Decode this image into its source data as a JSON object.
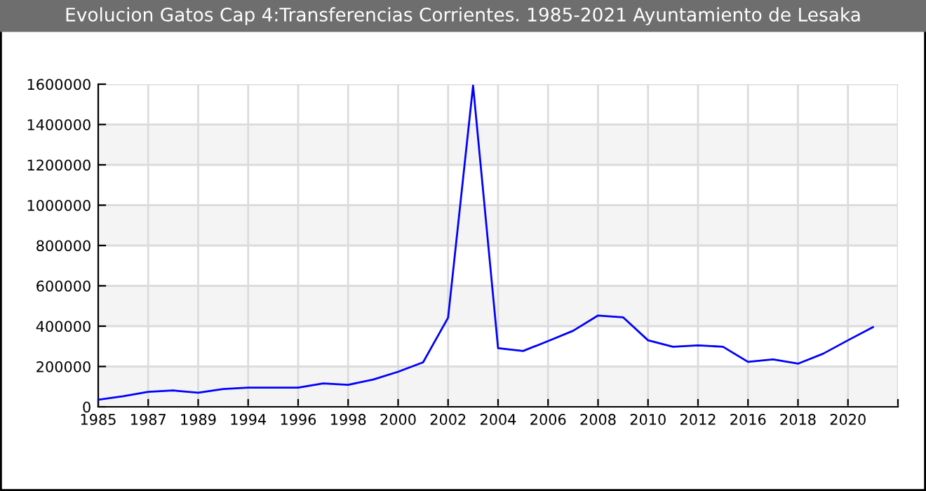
{
  "chart_data": {
    "type": "line",
    "title": "Evolucion Gatos Cap 4:Transferencias Corrientes. 1985-2021 Ayuntamiento de Lesaka",
    "categories": [
      "1985",
      null,
      "1987",
      null,
      "1989",
      null,
      "1994",
      null,
      "1996",
      null,
      "1998",
      null,
      "2000",
      null,
      "2002",
      null,
      "2004",
      null,
      "2006",
      null,
      "2008",
      null,
      "2010",
      null,
      "2012",
      null,
      "2016",
      null,
      "2018",
      null,
      "2020",
      null
    ],
    "series": [
      {
        "color": "#0000ff",
        "values": [
          35000,
          53000,
          74000,
          81000,
          70000,
          88000,
          95000,
          95000,
          95000,
          116000,
          109000,
          135000,
          174000,
          221000,
          442000,
          1593000,
          291000,
          277000,
          326000,
          377000,
          453000,
          444000,
          330000,
          298000,
          305000,
          298000,
          223000,
          235000,
          214000,
          263000,
          330000,
          395000
        ]
      }
    ],
    "ylim": [
      0,
      1600000
    ],
    "yticks": [
      0,
      200000,
      400000,
      600000,
      800000,
      1000000,
      1200000,
      1400000,
      1600000
    ],
    "grid": true,
    "marker": "none",
    "line_style": "solid",
    "legend": false
  }
}
